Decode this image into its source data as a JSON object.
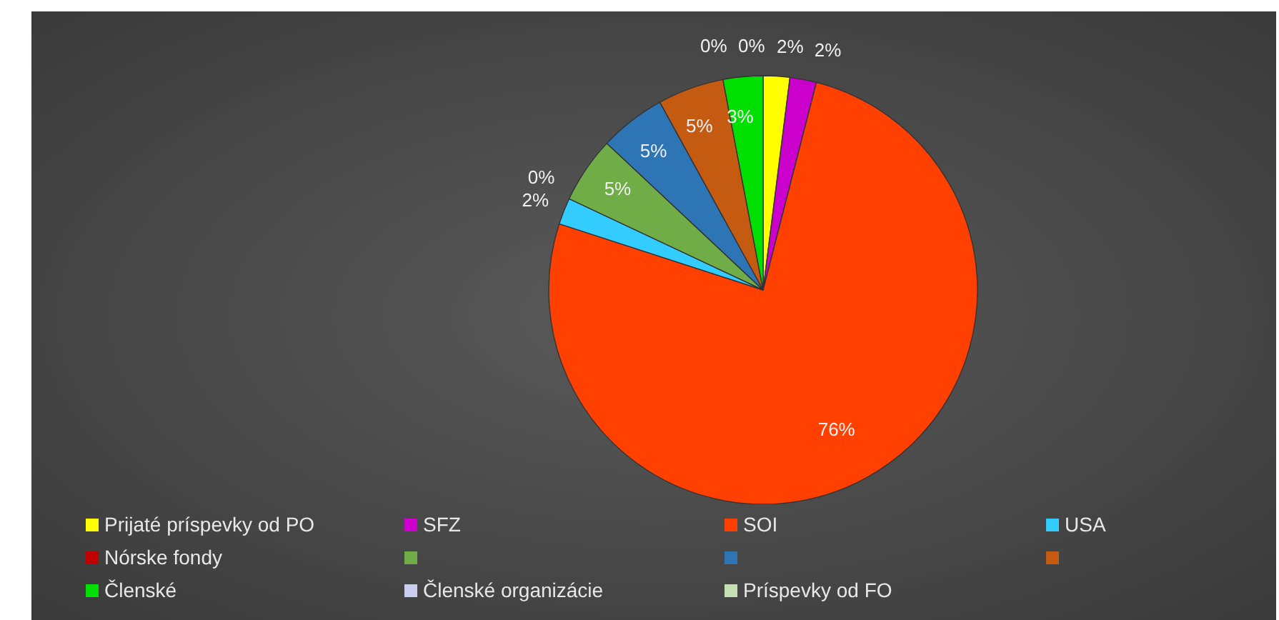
{
  "chart_data": {
    "type": "pie",
    "categories": [
      "Prijaté príspevky od PO",
      "SFZ",
      "SOI",
      "USA",
      "Nórske fondy",
      null,
      null,
      null,
      "Členské",
      "Členské organizácie",
      "Príspevky od FO"
    ],
    "values": [
      2,
      2,
      76,
      2,
      0,
      5,
      5,
      5,
      3,
      0,
      0
    ],
    "value_labels": [
      "2%",
      "2%",
      "76%",
      "2%",
      "0%",
      "5%",
      "5%",
      "5%",
      "3%",
      "0%",
      "0%"
    ],
    "colors": [
      "#ffff00",
      "#cc00cc",
      "#ff4000",
      "#33ccff",
      "#c00000",
      "#70ad47",
      "#2e75b6",
      "#c55a11",
      "#00e000",
      "#ccccee",
      "#c5e0b4"
    ],
    "legend": "bottom"
  }
}
